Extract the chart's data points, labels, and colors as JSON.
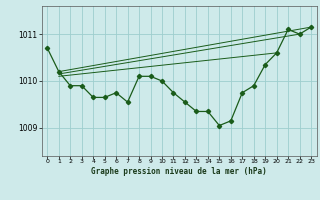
{
  "title": "Graphe pression niveau de la mer (hPa)",
  "bg_color": "#ceeaea",
  "grid_color": "#9ecece",
  "line_color": "#1a5c1a",
  "x_ticks": [
    0,
    1,
    2,
    3,
    4,
    5,
    6,
    7,
    8,
    9,
    10,
    11,
    12,
    13,
    14,
    15,
    16,
    17,
    18,
    19,
    20,
    21,
    22,
    23
  ],
  "y_ticks": [
    1009,
    1010,
    1011
  ],
  "ylim": [
    1008.4,
    1011.6
  ],
  "xlim": [
    -0.5,
    23.5
  ],
  "main_data": [
    [
      0,
      1010.7
    ],
    [
      1,
      1010.2
    ],
    [
      2,
      1009.9
    ],
    [
      3,
      1009.9
    ],
    [
      4,
      1009.65
    ],
    [
      5,
      1009.65
    ],
    [
      6,
      1009.75
    ],
    [
      7,
      1009.55
    ],
    [
      8,
      1010.1
    ],
    [
      9,
      1010.1
    ],
    [
      10,
      1010.0
    ],
    [
      11,
      1009.75
    ],
    [
      12,
      1009.55
    ],
    [
      13,
      1009.35
    ],
    [
      14,
      1009.35
    ],
    [
      15,
      1009.05
    ],
    [
      16,
      1009.15
    ],
    [
      17,
      1009.75
    ],
    [
      18,
      1009.9
    ],
    [
      19,
      1010.35
    ],
    [
      20,
      1010.6
    ],
    [
      21,
      1011.1
    ],
    [
      22,
      1011.0
    ],
    [
      23,
      1011.15
    ]
  ],
  "trend_line1": [
    [
      1,
      1010.2
    ],
    [
      23,
      1011.15
    ]
  ],
  "trend_line2": [
    [
      1,
      1010.15
    ],
    [
      22,
      1011.0
    ]
  ],
  "trend_line3": [
    [
      1,
      1010.1
    ],
    [
      20,
      1010.6
    ]
  ]
}
